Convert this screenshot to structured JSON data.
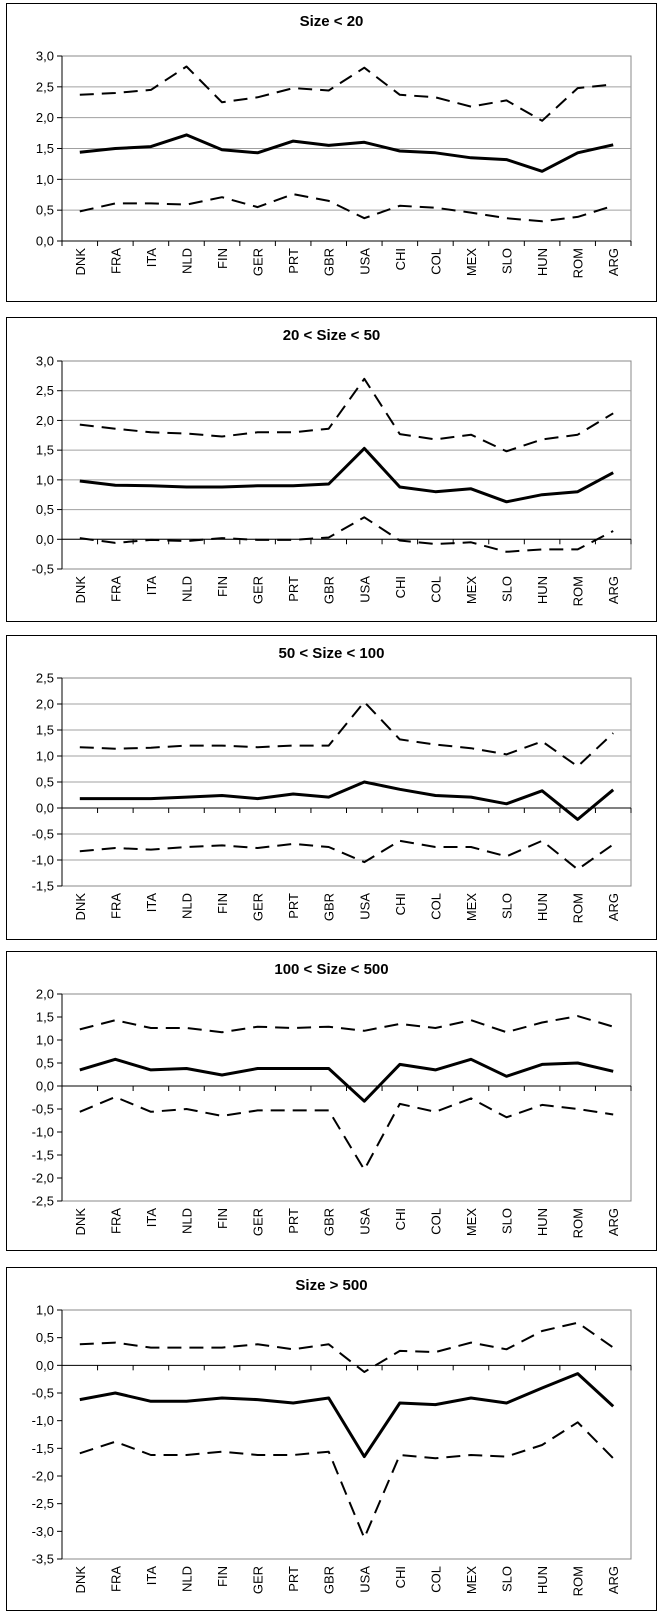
{
  "chart_data": [
    {
      "type": "line",
      "title": "Size < 20",
      "xlabel": "",
      "ylabel": "",
      "categories": [
        "DNK",
        "FRA",
        "ITA",
        "NLD",
        "FIN",
        "GER",
        "PRT",
        "GBR",
        "USA",
        "CHI",
        "COL",
        "MEX",
        "SLO",
        "HUN",
        "ROM",
        "ARG"
      ],
      "ylim": [
        0,
        3
      ],
      "yticks": [
        "0,0",
        "0,5",
        "1,0",
        "1,5",
        "2,0",
        "2,5",
        "3,0"
      ],
      "grid": true,
      "series": [
        {
          "style": "dashed",
          "values": [
            2.37,
            2.4,
            2.45,
            2.83,
            2.25,
            2.33,
            2.48,
            2.44,
            2.81,
            2.37,
            2.33,
            2.18,
            2.28,
            1.95,
            2.48,
            2.54
          ]
        },
        {
          "style": "solid",
          "values": [
            1.44,
            1.5,
            1.53,
            1.72,
            1.48,
            1.43,
            1.62,
            1.55,
            1.6,
            1.46,
            1.43,
            1.35,
            1.32,
            1.13,
            1.43,
            1.56
          ]
        },
        {
          "style": "dashed",
          "values": [
            0.48,
            0.61,
            0.61,
            0.59,
            0.71,
            0.55,
            0.76,
            0.65,
            0.37,
            0.57,
            0.54,
            0.46,
            0.37,
            0.32,
            0.39,
            0.57
          ]
        }
      ]
    },
    {
      "type": "line",
      "title": "20 < Size < 50",
      "xlabel": "",
      "ylabel": "",
      "categories": [
        "DNK",
        "FRA",
        "ITA",
        "NLD",
        "FIN",
        "GER",
        "PRT",
        "GBR",
        "USA",
        "CHI",
        "COL",
        "MEX",
        "SLO",
        "HUN",
        "ROM",
        "ARG"
      ],
      "ylim": [
        -0.5,
        3
      ],
      "yticks": [
        "-0,5",
        "0,0",
        "0,5",
        "1,0",
        "1,5",
        "2,0",
        "2,5",
        "3,0"
      ],
      "grid": true,
      "series": [
        {
          "style": "dashed",
          "values": [
            1.93,
            1.86,
            1.8,
            1.78,
            1.73,
            1.8,
            1.8,
            1.86,
            2.7,
            1.77,
            1.68,
            1.76,
            1.48,
            1.68,
            1.76,
            2.12
          ]
        },
        {
          "style": "solid",
          "values": [
            0.98,
            0.91,
            0.9,
            0.88,
            0.88,
            0.9,
            0.9,
            0.93,
            1.53,
            0.88,
            0.8,
            0.85,
            0.63,
            0.75,
            0.8,
            1.12
          ]
        },
        {
          "style": "dashed",
          "values": [
            0.02,
            -0.06,
            -0.01,
            -0.03,
            0.02,
            -0.01,
            -0.01,
            0.03,
            0.37,
            -0.02,
            -0.08,
            -0.05,
            -0.21,
            -0.17,
            -0.17,
            0.14
          ]
        }
      ]
    },
    {
      "type": "line",
      "title": "50 < Size < 100",
      "xlabel": "",
      "ylabel": "",
      "categories": [
        "DNK",
        "FRA",
        "ITA",
        "NLD",
        "FIN",
        "GER",
        "PRT",
        "GBR",
        "USA",
        "CHI",
        "COL",
        "MEX",
        "SLO",
        "HUN",
        "ROM",
        "ARG"
      ],
      "ylim": [
        -1.5,
        2.5
      ],
      "yticks": [
        "-1,5",
        "-1,0",
        "-0,5",
        "0,0",
        "0,5",
        "1,0",
        "1,5",
        "2,0",
        "2,5"
      ],
      "grid": true,
      "series": [
        {
          "style": "dashed",
          "values": [
            1.17,
            1.14,
            1.16,
            1.2,
            1.2,
            1.17,
            1.2,
            1.2,
            2.04,
            1.32,
            1.22,
            1.15,
            1.03,
            1.28,
            0.8,
            1.44
          ]
        },
        {
          "style": "solid",
          "values": [
            0.18,
            0.18,
            0.18,
            0.21,
            0.24,
            0.18,
            0.27,
            0.21,
            0.5,
            0.36,
            0.24,
            0.21,
            0.08,
            0.33,
            -0.22,
            0.35
          ]
        },
        {
          "style": "dashed",
          "values": [
            -0.83,
            -0.77,
            -0.8,
            -0.75,
            -0.72,
            -0.77,
            -0.69,
            -0.75,
            -1.04,
            -0.63,
            -0.75,
            -0.75,
            -0.93,
            -0.63,
            -1.18,
            -0.7
          ]
        }
      ]
    },
    {
      "type": "line",
      "title": "100 < Size < 500",
      "xlabel": "",
      "ylabel": "",
      "categories": [
        "DNK",
        "FRA",
        "ITA",
        "NLD",
        "FIN",
        "GER",
        "PRT",
        "GBR",
        "USA",
        "CHI",
        "COL",
        "MEX",
        "SLO",
        "HUN",
        "ROM",
        "ARG"
      ],
      "ylim": [
        -2.5,
        2
      ],
      "yticks": [
        "-2,5",
        "-2,0",
        "-1,5",
        "-1,0",
        "-0,5",
        "0,0",
        "0,5",
        "1,0",
        "1,5",
        "2,0"
      ],
      "grid": false,
      "series": [
        {
          "style": "dashed",
          "values": [
            1.23,
            1.43,
            1.26,
            1.26,
            1.17,
            1.29,
            1.26,
            1.29,
            1.2,
            1.35,
            1.26,
            1.43,
            1.17,
            1.38,
            1.52,
            1.29
          ]
        },
        {
          "style": "solid",
          "values": [
            0.35,
            0.58,
            0.35,
            0.38,
            0.24,
            0.38,
            0.38,
            0.38,
            -0.33,
            0.47,
            0.35,
            0.58,
            0.21,
            0.47,
            0.5,
            0.32
          ]
        },
        {
          "style": "dashed",
          "values": [
            -0.56,
            -0.24,
            -0.56,
            -0.5,
            -0.65,
            -0.53,
            -0.53,
            -0.53,
            -1.82,
            -0.39,
            -0.56,
            -0.27,
            -0.68,
            -0.41,
            -0.5,
            -0.62
          ]
        }
      ]
    },
    {
      "type": "line",
      "title": "Size > 500",
      "xlabel": "",
      "ylabel": "",
      "categories": [
        "DNK",
        "FRA",
        "ITA",
        "NLD",
        "FIN",
        "GER",
        "PRT",
        "GBR",
        "USA",
        "CHI",
        "COL",
        "MEX",
        "SLO",
        "HUN",
        "ROM",
        "ARG"
      ],
      "ylim": [
        -3.5,
        1
      ],
      "yticks": [
        "-3,5",
        "-3,0",
        "-2,5",
        "-2,0",
        "-1,5",
        "-1,0",
        "-0,5",
        "0,0",
        "0,5",
        "1,0"
      ],
      "grid": false,
      "series": [
        {
          "style": "dashed",
          "values": [
            0.38,
            0.41,
            0.32,
            0.32,
            0.32,
            0.38,
            0.29,
            0.38,
            -0.12,
            0.26,
            0.24,
            0.41,
            0.29,
            0.62,
            0.77,
            0.32
          ]
        },
        {
          "style": "solid",
          "values": [
            -0.62,
            -0.5,
            -0.65,
            -0.65,
            -0.59,
            -0.62,
            -0.68,
            -0.59,
            -1.65,
            -0.68,
            -0.71,
            -0.59,
            -0.68,
            -0.41,
            -0.15,
            -0.74
          ]
        },
        {
          "style": "dashed",
          "values": [
            -1.59,
            -1.38,
            -1.62,
            -1.62,
            -1.56,
            -1.62,
            -1.62,
            -1.56,
            -3.12,
            -1.62,
            -1.68,
            -1.62,
            -1.65,
            -1.44,
            -1.03,
            -1.68
          ]
        }
      ]
    }
  ]
}
